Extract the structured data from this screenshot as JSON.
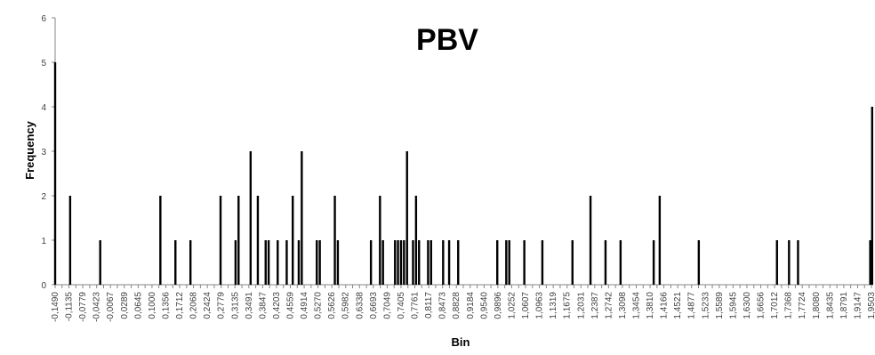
{
  "chart_data": {
    "type": "bar",
    "title": "PBV",
    "xlabel": "Bin",
    "ylabel": "Frequency",
    "ylim": [
      0,
      6
    ],
    "yticks": [
      "0",
      "1",
      "2",
      "3",
      "4",
      "5",
      "6"
    ],
    "tick_labels": [
      "-0,1490",
      "-0,1135",
      "-0,0779",
      "-0,0423",
      "-0,0067",
      "0,0289",
      "0,0645",
      "0,1000",
      "0,1356",
      "0,1712",
      "0,2068",
      "0,2424",
      "0,2779",
      "0,3135",
      "0,3491",
      "0,3847",
      "0,4203",
      "0,4559",
      "0,4914",
      "0,5270",
      "0,5626",
      "0,5982",
      "0,6338",
      "0,6693",
      "0,7049",
      "0,7405",
      "0,7761",
      "0,8117",
      "0,8473",
      "0,8828",
      "0,9184",
      "0,9540",
      "0,9896",
      "1,0252",
      "1,0607",
      "1,0963",
      "1,1319",
      "1,1675",
      "1,2031",
      "1,2387",
      "1,2742",
      "1,3098",
      "1,3454",
      "1,3810",
      "1,4166",
      "1,4521",
      "1,4877",
      "1,5233",
      "1,5589",
      "1,5945",
      "1,6300",
      "1,6656",
      "1,7012",
      "1,7368",
      "1,7724",
      "1,8080",
      "1,8435",
      "1,8791",
      "1,9147",
      "1,9503"
    ],
    "bars": [
      {
        "x": -0.149,
        "y": 5
      },
      {
        "x": -0.1135,
        "y": 2
      },
      {
        "x": -0.0423,
        "y": 1
      },
      {
        "x": 0.1,
        "y": 2
      },
      {
        "x": 0.1356,
        "y": 1
      },
      {
        "x": 0.1712,
        "y": 1
      },
      {
        "x": 0.2424,
        "y": 2
      },
      {
        "x": 0.2779,
        "y": 1
      },
      {
        "x": 0.285,
        "y": 2
      },
      {
        "x": 0.3135,
        "y": 3
      },
      {
        "x": 0.3306,
        "y": 2
      },
      {
        "x": 0.3491,
        "y": 1
      },
      {
        "x": 0.3562,
        "y": 1
      },
      {
        "x": 0.3776,
        "y": 1
      },
      {
        "x": 0.3989,
        "y": 1
      },
      {
        "x": 0.4132,
        "y": 2
      },
      {
        "x": 0.4274,
        "y": 1
      },
      {
        "x": 0.4345,
        "y": 3
      },
      {
        "x": 0.4701,
        "y": 1
      },
      {
        "x": 0.4772,
        "y": 1
      },
      {
        "x": 0.5128,
        "y": 2
      },
      {
        "x": 0.5199,
        "y": 1
      },
      {
        "x": 0.5982,
        "y": 1
      },
      {
        "x": 0.6196,
        "y": 2
      },
      {
        "x": 0.6267,
        "y": 1
      },
      {
        "x": 0.6552,
        "y": 1
      },
      {
        "x": 0.6622,
        "y": 1
      },
      {
        "x": 0.6693,
        "y": 1
      },
      {
        "x": 0.6764,
        "y": 1
      },
      {
        "x": 0.6836,
        "y": 3
      },
      {
        "x": 0.6978,
        "y": 1
      },
      {
        "x": 0.7049,
        "y": 2
      },
      {
        "x": 0.712,
        "y": 1
      },
      {
        "x": 0.7334,
        "y": 1
      },
      {
        "x": 0.7405,
        "y": 1
      },
      {
        "x": 0.769,
        "y": 1
      },
      {
        "x": 0.7832,
        "y": 1
      },
      {
        "x": 0.8046,
        "y": 1
      },
      {
        "x": 0.8971,
        "y": 1
      },
      {
        "x": 0.9184,
        "y": 1
      },
      {
        "x": 0.9255,
        "y": 1
      },
      {
        "x": 0.9611,
        "y": 1
      },
      {
        "x": 1.0038,
        "y": 1
      },
      {
        "x": 1.075,
        "y": 1
      },
      {
        "x": 1.1177,
        "y": 2
      },
      {
        "x": 1.1532,
        "y": 1
      },
      {
        "x": 1.1888,
        "y": 1
      },
      {
        "x": 1.2672,
        "y": 1
      },
      {
        "x": 1.2814,
        "y": 2
      },
      {
        "x": 1.3739,
        "y": 1
      },
      {
        "x": 1.5589,
        "y": 1
      },
      {
        "x": 1.5874,
        "y": 1
      },
      {
        "x": 1.6087,
        "y": 1
      },
      {
        "x": 1.7795,
        "y": 1
      },
      {
        "x": 1.7866,
        "y": 4
      }
    ],
    "xlim": [
      -0.149,
      1.7866
    ],
    "grid": false,
    "legend": "none",
    "colors": {
      "bar": "#000000",
      "axis": "#868686",
      "text": "#404040"
    }
  }
}
